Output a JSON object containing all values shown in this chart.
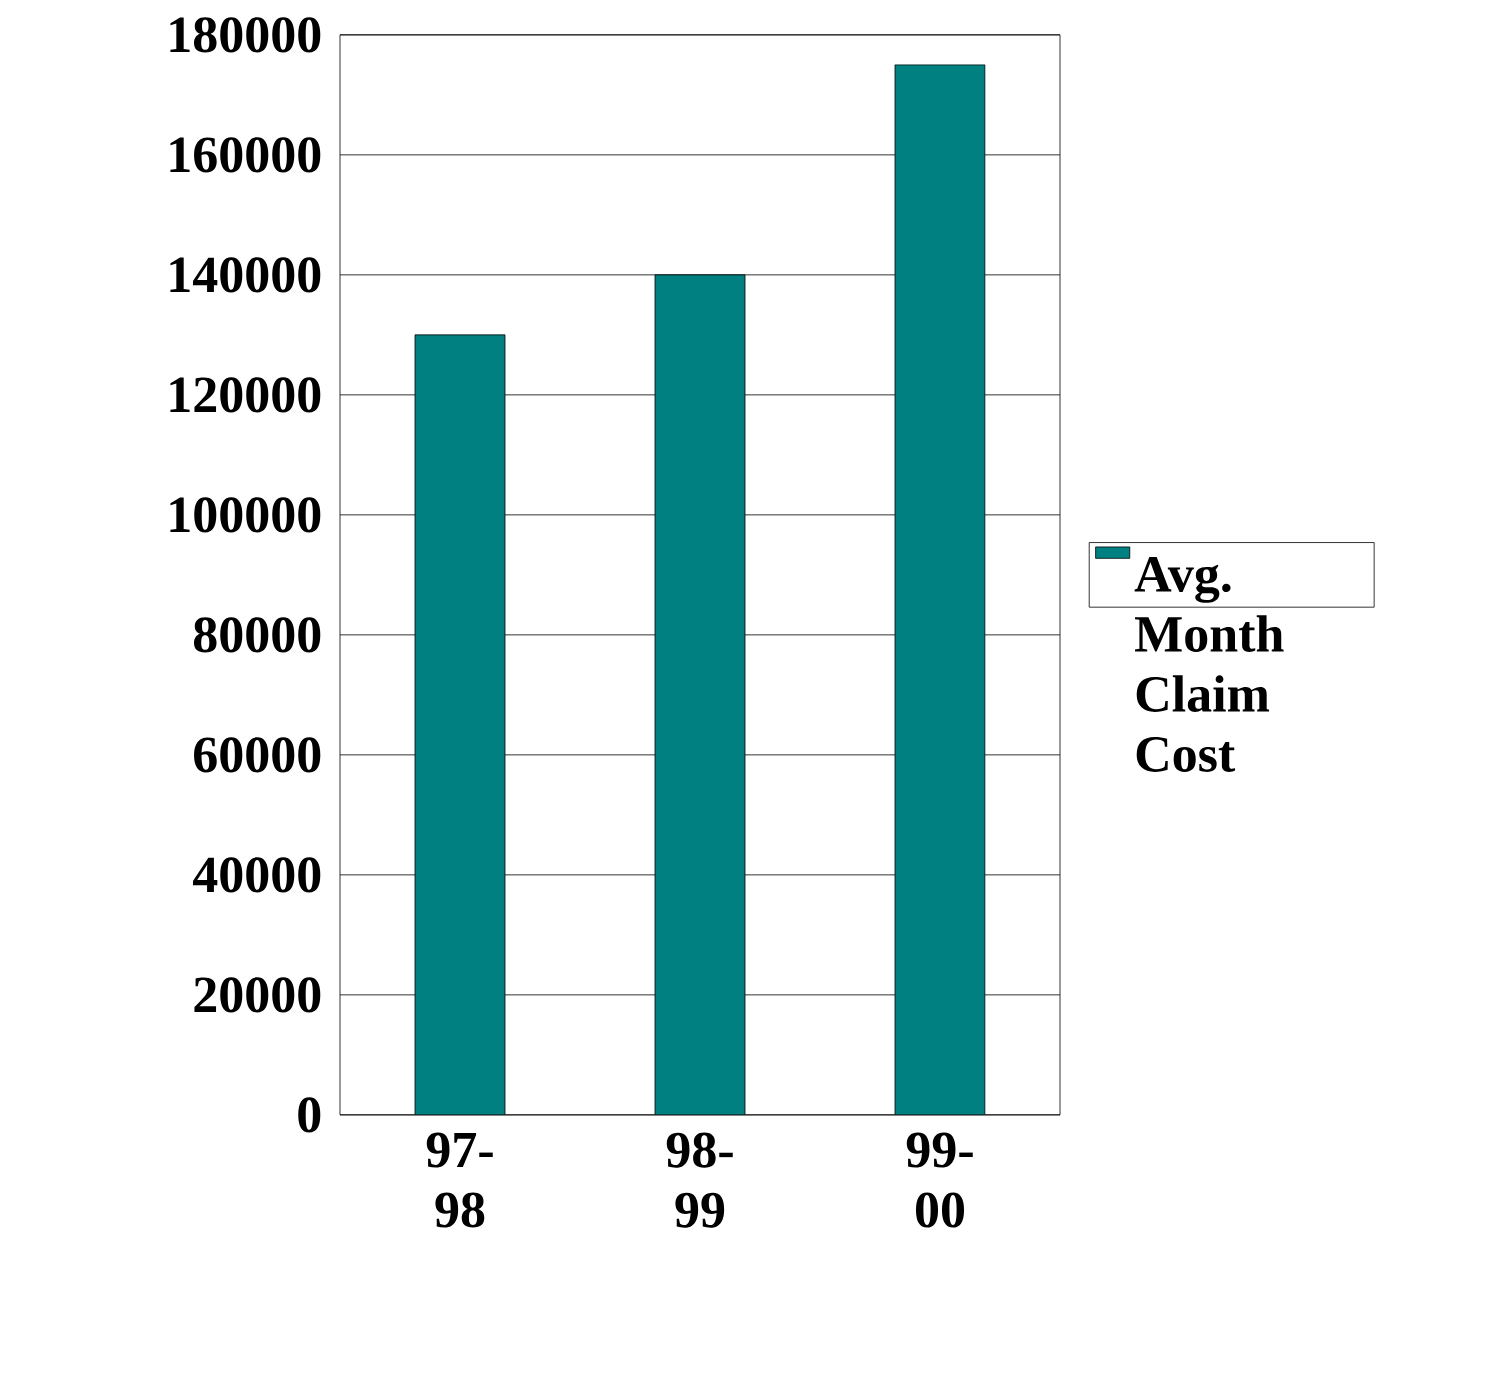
{
  "chart_data": {
    "type": "bar",
    "categories": [
      "97-98",
      "98-99",
      "99-00"
    ],
    "series": [
      {
        "name": "Avg. Month Claim Cost",
        "color": "#008080",
        "values": [
          130000,
          140000,
          175000
        ]
      }
    ],
    "ylim": [
      0,
      180000
    ],
    "yticks": [
      0,
      20000,
      40000,
      60000,
      80000,
      100000,
      120000,
      140000,
      160000,
      180000
    ],
    "grid": "y",
    "legend": "right"
  }
}
